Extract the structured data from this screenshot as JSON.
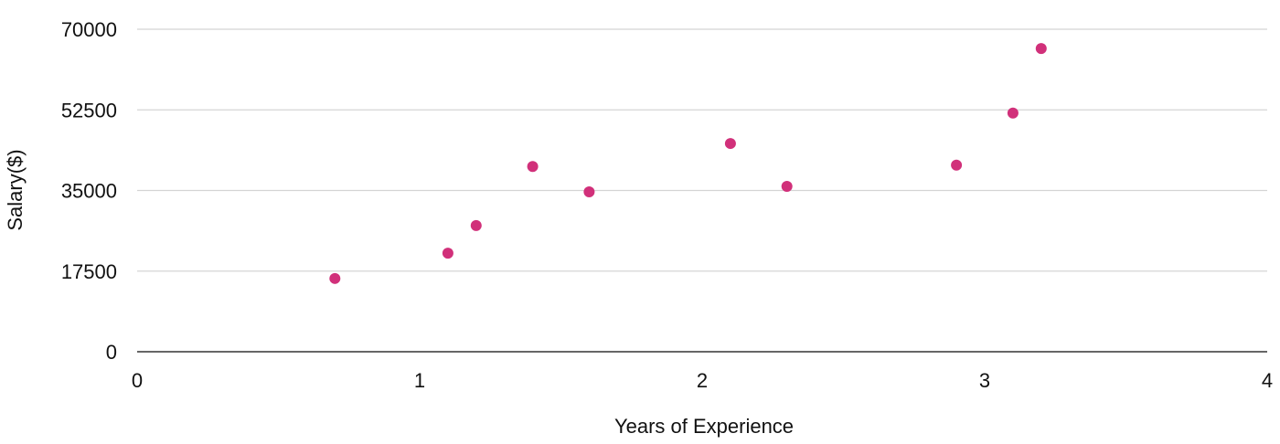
{
  "chart_data": {
    "type": "scatter",
    "title": "",
    "xlabel": "Years of Experience",
    "ylabel": "Salary($)",
    "xlim": [
      0,
      4
    ],
    "ylim": [
      0,
      70000
    ],
    "x_ticks": [
      "0",
      "1",
      "2",
      "3",
      "4"
    ],
    "y_ticks": [
      "0",
      "17500",
      "35000",
      "52500",
      "70000"
    ],
    "grid": "horizontal",
    "legend": "none",
    "marker_color": "#d1307a",
    "points": [
      {
        "x": 0.7,
        "y": 15900
      },
      {
        "x": 1.1,
        "y": 21400
      },
      {
        "x": 1.2,
        "y": 27400
      },
      {
        "x": 1.4,
        "y": 40200
      },
      {
        "x": 1.6,
        "y": 34700
      },
      {
        "x": 2.1,
        "y": 45200
      },
      {
        "x": 2.3,
        "y": 35900
      },
      {
        "x": 2.9,
        "y": 40500
      },
      {
        "x": 3.1,
        "y": 51800
      },
      {
        "x": 3.2,
        "y": 65800
      }
    ]
  }
}
